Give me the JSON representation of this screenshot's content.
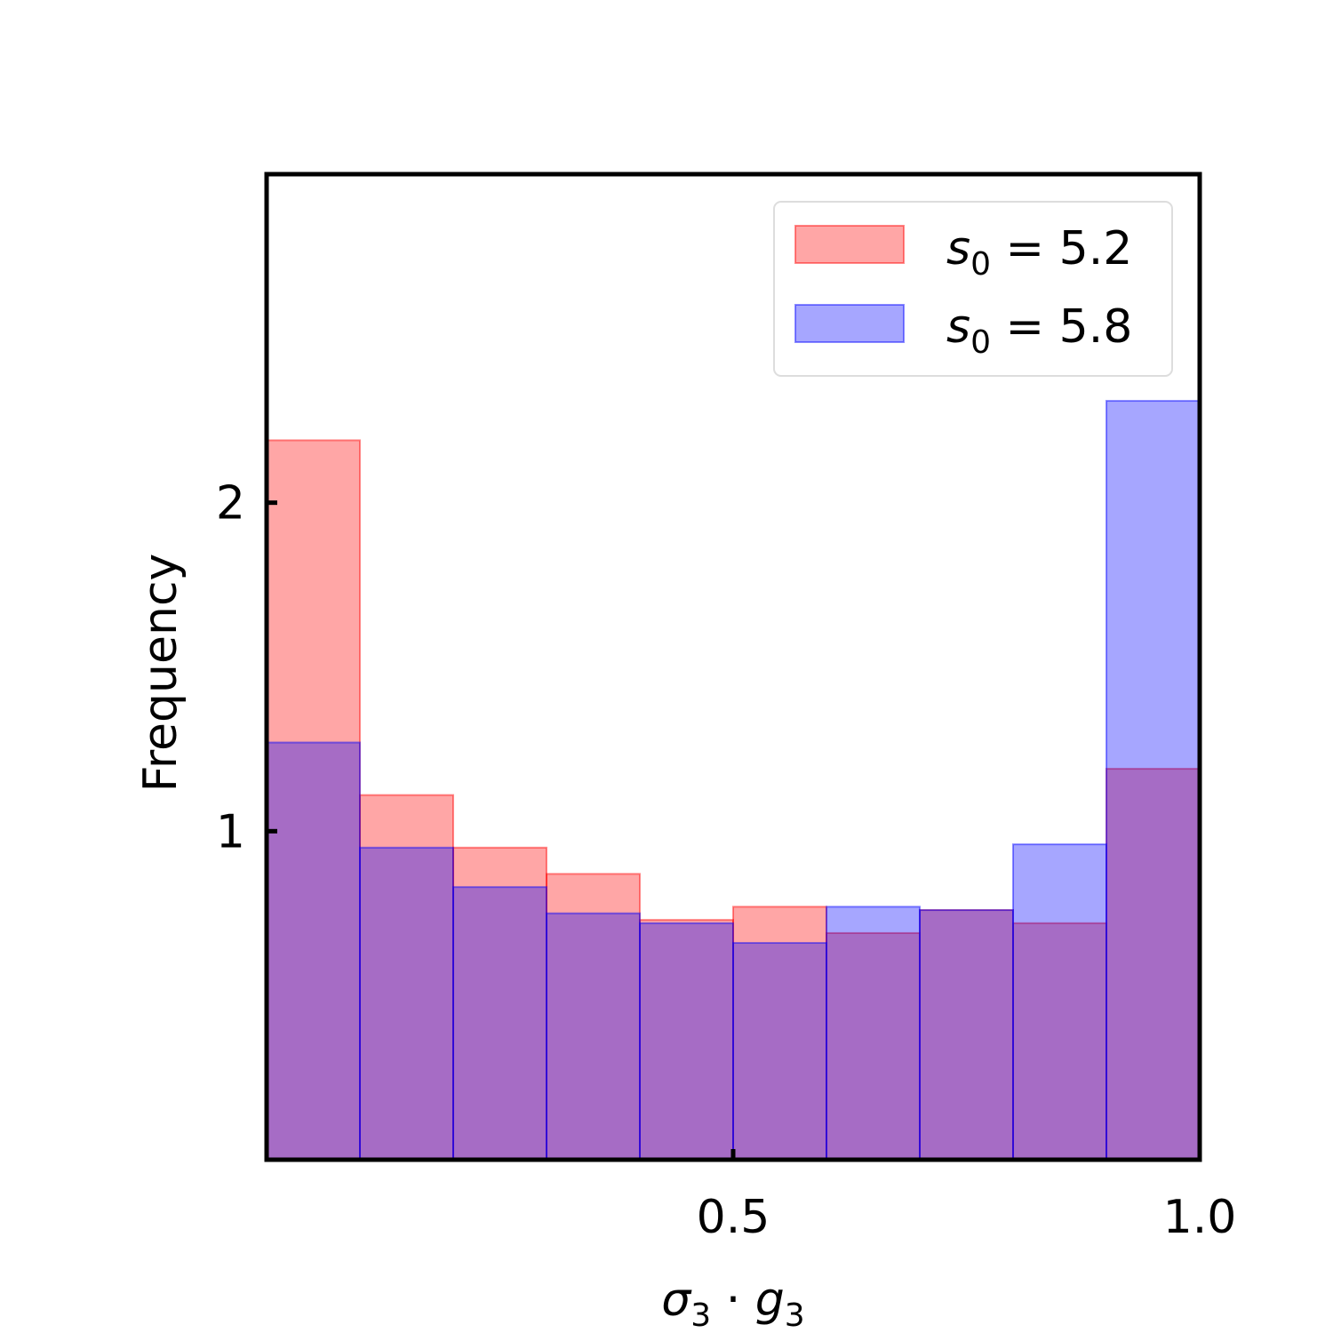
{
  "chart_data": {
    "type": "bar",
    "subtype": "overlapping-histogram",
    "title": "",
    "xlabel_parts": {
      "symbol1": "σ",
      "sub1": "3",
      "dot": " · ",
      "symbol2": "g",
      "sub2": "3"
    },
    "ylabel": "Frequency",
    "xlim": [
      0.0,
      1.0
    ],
    "ylim": [
      0.0,
      3.0
    ],
    "x_ticks": [
      {
        "value": 0.5,
        "label": "0.5"
      },
      {
        "value": 1.0,
        "label": "1.0"
      }
    ],
    "y_ticks": [
      {
        "value": 1,
        "label": "1"
      },
      {
        "value": 2,
        "label": "2"
      }
    ],
    "bin_edges": [
      0.0,
      0.1,
      0.2,
      0.3,
      0.4,
      0.5,
      0.6,
      0.7,
      0.8,
      0.9,
      1.0
    ],
    "grid": false,
    "legend_position": "top-right",
    "series": [
      {
        "legend_parts": {
          "symbol": "s",
          "sub": "0",
          "rest": " = 5.2"
        },
        "color": "#ff0000",
        "fill_opacity": 0.35,
        "values": [
          2.19,
          1.11,
          0.95,
          0.87,
          0.73,
          0.77,
          0.69,
          0.76,
          0.72,
          1.19
        ]
      },
      {
        "legend_parts": {
          "symbol": "s",
          "sub": "0",
          "rest": " = 5.8"
        },
        "color": "#0000ff",
        "fill_opacity": 0.35,
        "values": [
          1.27,
          0.95,
          0.83,
          0.75,
          0.72,
          0.66,
          0.77,
          0.76,
          0.96,
          2.31
        ]
      }
    ]
  }
}
